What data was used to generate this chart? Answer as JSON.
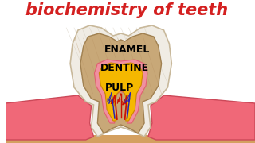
{
  "title": "biochemistry of teeth",
  "title_color": "#d42020",
  "title_fontsize": 15,
  "bg_color": "#ffffff",
  "label_enamel": "ENAMEL",
  "label_dentine": "DENTINE",
  "label_pulp": "PULP",
  "label_fontsize": 9,
  "label_fontweight": "bold",
  "enamel_color": "#f0ece4",
  "enamel_outline": "#c8b89a",
  "dentine_color": "#c8a878",
  "dentine_outline": "#a08050",
  "pulp_color": "#f5b800",
  "pulp_outline": "#cc8800",
  "pulp_pink": "#f090a0",
  "pulp_pink_outline": "#e06070",
  "gum_color": "#f06878",
  "gum_outline": "#cc4858",
  "nerve_red": "#cc1100",
  "nerve_blue": "#2222bb",
  "bone_color": "#d4a060",
  "bone_outline": "#b08040",
  "shadow_color": "#d0c8b8"
}
